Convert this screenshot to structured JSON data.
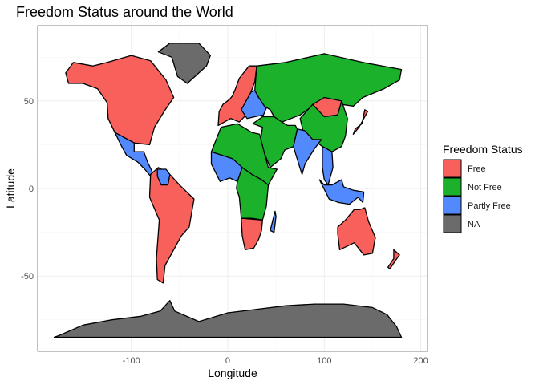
{
  "title": "Freedom Status around the World",
  "x_axis": {
    "label": "Longitude",
    "ticks": [
      -100,
      0,
      100,
      200
    ],
    "range": [
      -197,
      207
    ]
  },
  "y_axis": {
    "label": "Latitude",
    "ticks": [
      -50,
      0,
      50
    ],
    "range": [
      -93,
      93
    ]
  },
  "legend": {
    "title": "Freedom Status",
    "position": "right",
    "items": [
      {
        "label": "Free",
        "color": "#f8605c"
      },
      {
        "label": "Not Free",
        "color": "#1bb12b"
      },
      {
        "label": "Partly Free",
        "color": "#528afd"
      },
      {
        "label": "NA",
        "color": "#6b6b6b"
      }
    ]
  },
  "chart_data": {
    "type": "choropleth-map",
    "projection": "equirectangular (longitude / latitude)",
    "grid": true,
    "regions": [
      {
        "region": "North America",
        "status": "Free"
      },
      {
        "region": "Greenland",
        "status": "NA"
      },
      {
        "region": "Mexico & Central America",
        "status": "Partly Free"
      },
      {
        "region": "South America",
        "status": "Free"
      },
      {
        "region": "Venezuela",
        "status": "Partly Free"
      },
      {
        "region": "Western Europe",
        "status": "Free"
      },
      {
        "region": "Eastern Europe",
        "status": "Partly Free"
      },
      {
        "region": "Russia & Central Asia",
        "status": "Not Free"
      },
      {
        "region": "Mongolia",
        "status": "Free"
      },
      {
        "region": "China",
        "status": "Not Free"
      },
      {
        "region": "India",
        "status": "Partly Free"
      },
      {
        "region": "Middle East",
        "status": "Not Free"
      },
      {
        "region": "North Africa",
        "status": "Not Free"
      },
      {
        "region": "West Africa",
        "status": "Partly Free"
      },
      {
        "region": "Central Africa",
        "status": "Not Free"
      },
      {
        "region": "Southern Africa",
        "status": "Free"
      },
      {
        "region": "Southeast Asia",
        "status": "Partly Free"
      },
      {
        "region": "Japan",
        "status": "Free"
      },
      {
        "region": "Australia",
        "status": "Free"
      },
      {
        "region": "New Zealand",
        "status": "Free"
      },
      {
        "region": "Antarctica",
        "status": "NA"
      }
    ]
  }
}
